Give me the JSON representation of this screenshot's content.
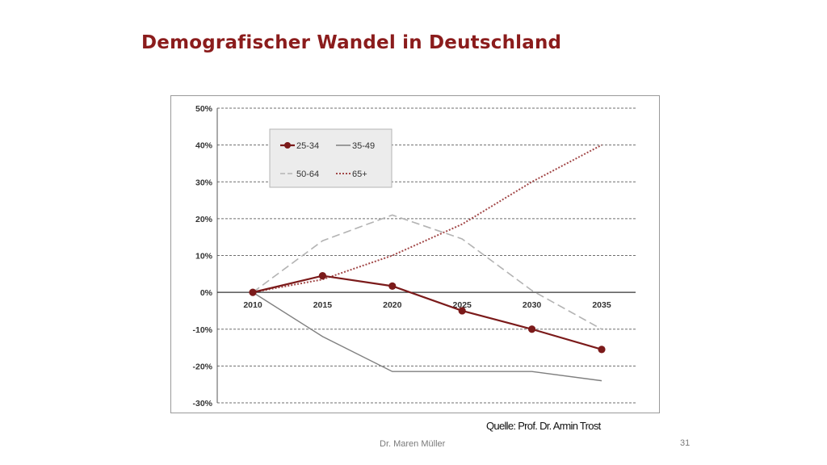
{
  "slide": {
    "title": "Demografischer Wandel in Deutschland",
    "source": "Quelle: Prof. Dr. Armin Trost",
    "footer_author": "Dr. Maren Müller",
    "page_number": "31"
  },
  "chart_data": {
    "type": "line",
    "title": "",
    "xlabel": "",
    "ylabel": "",
    "x": [
      "2010",
      "2015",
      "2020",
      "2025",
      "2030",
      "2035"
    ],
    "ylim": [
      -30,
      50
    ],
    "yticks": [
      50,
      40,
      30,
      20,
      10,
      0,
      -10,
      -20,
      -30
    ],
    "ytick_labels": [
      "50%",
      "40%",
      "30%",
      "20%",
      "10%",
      "0%",
      "-10%",
      "-20%",
      "-30%"
    ],
    "grid": true,
    "legend_position": "top-left",
    "series": [
      {
        "name": "25-34",
        "values": [
          0,
          4.5,
          1.7,
          -5,
          -10,
          -15.5
        ],
        "color": "#7b1a1a",
        "style": "solid-markers"
      },
      {
        "name": "35-49",
        "values": [
          0,
          -12,
          -21.5,
          -21.5,
          -21.5,
          -24
        ],
        "color": "#7f7f7f",
        "style": "solid"
      },
      {
        "name": "50-64",
        "values": [
          0,
          14,
          21,
          14.5,
          0.5,
          -10
        ],
        "color": "#b3b3b3",
        "style": "dashed"
      },
      {
        "name": "65+",
        "values": [
          0,
          3.5,
          10,
          18.5,
          30,
          40
        ],
        "color": "#a24848",
        "style": "dotted"
      }
    ]
  }
}
